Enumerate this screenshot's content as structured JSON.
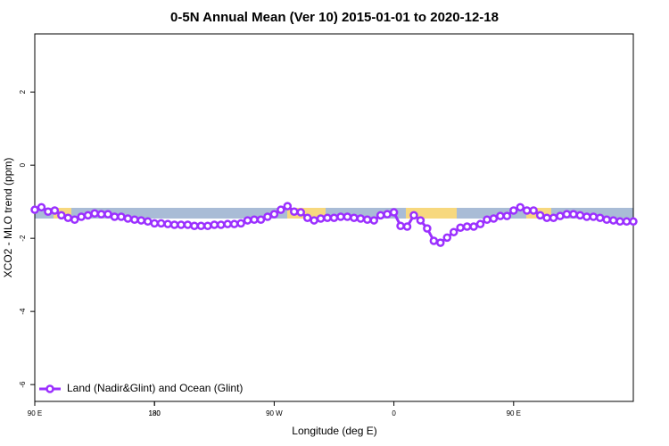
{
  "chart_data": {
    "type": "line",
    "title": "0-5N Annual Mean (Ver 10)   2015-01-01 to 2020-12-18",
    "x_label": "Longitude (deg E)",
    "y_label": "XCO2 - MLO trend (ppm)",
    "x": [
      90,
      95,
      100,
      105,
      110,
      115,
      120,
      125,
      130,
      135,
      140,
      145,
      150,
      155,
      160,
      165,
      170,
      175,
      180,
      185,
      190,
      195,
      200,
      205,
      210,
      215,
      220,
      225,
      230,
      235,
      240,
      245,
      250,
      255,
      260,
      265,
      270,
      275,
      280,
      285,
      290,
      295,
      300,
      305,
      310,
      315,
      320,
      325,
      330,
      335,
      340,
      345,
      350,
      355,
      360,
      365,
      370,
      375,
      380,
      385,
      390,
      395,
      400,
      405,
      410,
      415,
      420,
      425,
      430,
      435,
      440,
      445,
      450,
      455,
      460,
      465,
      470,
      475,
      480,
      485,
      490,
      495,
      500,
      505,
      510,
      515,
      520,
      525,
      530,
      535,
      540
    ],
    "series": [
      {
        "name": "Land (Nadir&Glint) and Ocean (Glint)",
        "color": "#9b30ff",
        "values": [
          -1.22,
          -1.15,
          -1.27,
          -1.24,
          -1.37,
          -1.44,
          -1.49,
          -1.41,
          -1.37,
          -1.32,
          -1.34,
          -1.34,
          -1.41,
          -1.41,
          -1.46,
          -1.49,
          -1.51,
          -1.54,
          -1.59,
          -1.59,
          -1.61,
          -1.63,
          -1.63,
          -1.63,
          -1.66,
          -1.66,
          -1.66,
          -1.63,
          -1.63,
          -1.61,
          -1.61,
          -1.59,
          -1.51,
          -1.49,
          -1.49,
          -1.41,
          -1.34,
          -1.22,
          -1.12,
          -1.27,
          -1.29,
          -1.44,
          -1.51,
          -1.46,
          -1.44,
          -1.44,
          -1.41,
          -1.41,
          -1.44,
          -1.46,
          -1.49,
          -1.51,
          -1.37,
          -1.34,
          -1.29,
          -1.66,
          -1.68,
          -1.37,
          -1.51,
          -1.73,
          -2.07,
          -2.12,
          -1.98,
          -1.83,
          -1.71,
          -1.68,
          -1.68,
          -1.61,
          -1.49,
          -1.46,
          -1.39,
          -1.39,
          -1.24,
          -1.15,
          -1.24,
          -1.24,
          -1.37,
          -1.44,
          -1.44,
          -1.39,
          -1.34,
          -1.34,
          -1.37,
          -1.41,
          -1.41,
          -1.44,
          -1.49,
          -1.51,
          -1.54,
          -1.54,
          -1.54
        ]
      }
    ],
    "xlim": [
      90,
      540
    ],
    "xticks": [
      {
        "value": 90,
        "label": "90 E"
      },
      180,
      {
        "value": 270,
        "label": "90 W"
      },
      {
        "value": 360,
        "label": "0"
      },
      {
        "value": 450,
        "label": "90 E"
      },
      180.0001
    ],
    "ylim": [
      -6.46,
      3.59
    ],
    "yticks": [
      -6,
      -4,
      -2,
      0,
      2
    ],
    "legend": "bottom-left"
  }
}
